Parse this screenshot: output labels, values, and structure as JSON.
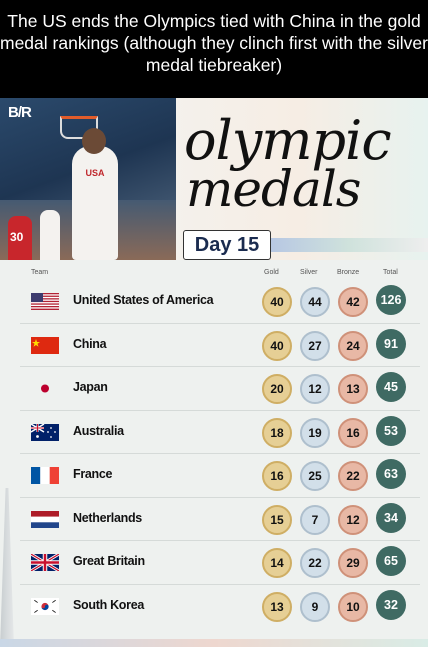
{
  "caption": "The US ends the Olympics tied with China in the gold medal rankings (although they clinch first with the silver medal tiebreaker)",
  "brand": "B/R",
  "title_line1": "olympic",
  "title_line2": "medals",
  "day": "Day 15",
  "photo_texts": {
    "jersey": "USA",
    "number": "30"
  },
  "headers": {
    "team": "Team",
    "gold": "Gold",
    "silver": "Silver",
    "bronze": "Bronze",
    "total": "Total"
  },
  "rows": [
    {
      "team": "United States of America",
      "gold": "40",
      "silver": "44",
      "bronze": "42",
      "total": "126",
      "flag": "us-flag"
    },
    {
      "team": "China",
      "gold": "40",
      "silver": "27",
      "bronze": "24",
      "total": "91",
      "flag": "china-flag"
    },
    {
      "team": "Japan",
      "gold": "20",
      "silver": "12",
      "bronze": "13",
      "total": "45",
      "flag": "japan-flag"
    },
    {
      "team": "Australia",
      "gold": "18",
      "silver": "19",
      "bronze": "16",
      "total": "53",
      "flag": "australia-flag"
    },
    {
      "team": "France",
      "gold": "16",
      "silver": "25",
      "bronze": "22",
      "total": "63",
      "flag": "france-flag"
    },
    {
      "team": "Netherlands",
      "gold": "15",
      "silver": "7",
      "bronze": "12",
      "total": "34",
      "flag": "netherlands-flag"
    },
    {
      "team": "Great Britain",
      "gold": "14",
      "silver": "22",
      "bronze": "29",
      "total": "65",
      "flag": "uk-flag"
    },
    {
      "team": "South Korea",
      "gold": "13",
      "silver": "9",
      "bronze": "10",
      "total": "32",
      "flag": "south-korea-flag"
    }
  ],
  "colors": {
    "total_badge": "#3f6a63",
    "gold": "#e6cf95",
    "silver": "#d2dfe9",
    "bronze": "#e8b8a5"
  }
}
